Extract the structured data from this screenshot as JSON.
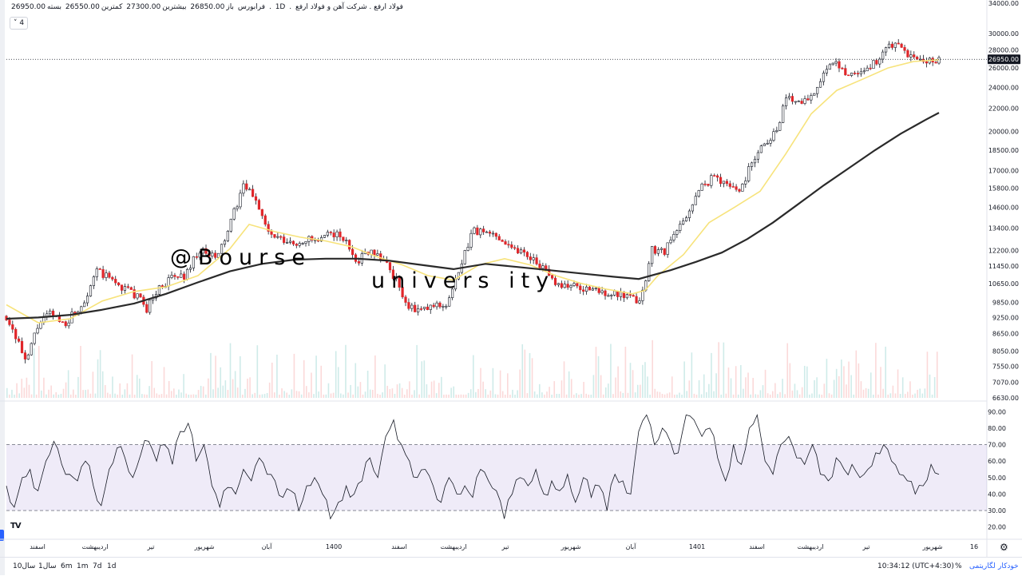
{
  "header": {
    "title": "فولاد ارفع . شرکت آهن و فولاد ارفع",
    "interval": "1D",
    "exchange": "فرابورس",
    "open_label": "باز",
    "open": "26850.00",
    "high_label": "بیشترین",
    "high": "27300.00",
    "low_label": "کمترین",
    "low": "26550.00",
    "close_label": "بسته",
    "close": "26950.00",
    "collapse_label": "4"
  },
  "watermark": {
    "line1": "@Bourse",
    "line2": "univers ity"
  },
  "bottom_bar": {
    "ranges": [
      "10سال",
      "1سال",
      "6m",
      "1m",
      "7d",
      "1d"
    ],
    "time": "10:34:12 (UTC+4:30)",
    "percent": "%",
    "log": "لگاریتمی",
    "auto": "خودکار"
  },
  "chart_data": [
    {
      "type": "candlestick",
      "title": "فولاد ارفع . شرکت آهن و فولاد ارفع",
      "price_scale": "log",
      "y_ticks": [
        34000,
        30000,
        28000,
        26000,
        24000,
        22000,
        20000,
        18500,
        17000,
        15800,
        14600,
        13400,
        12200,
        11450,
        10650,
        9850,
        9250,
        8650,
        8050,
        7550,
        7070,
        6630
      ],
      "y_tick_labels": [
        "34000.00",
        "30000.00",
        "28000.00",
        "26000.00",
        "24000.00",
        "22000.00",
        "20000.00",
        "18500.00",
        "17000.00",
        "15800.00",
        "14600.00",
        "13400.00",
        "12200.00",
        "11450.00",
        "10650.00",
        "9850.00",
        "9250.00",
        "8650.00",
        "8050.00",
        "7550.00",
        "7070.00",
        "6630.00"
      ],
      "last_price": 26950,
      "last_price_label": "26950.00",
      "x_labels": [
        "اسفند",
        "اردیبهشت",
        "تیر",
        "شهریور",
        "آبان",
        "1400",
        "اسفند",
        "اردیبهشت",
        "تیر",
        "شهریور",
        "آبان",
        "1401",
        "اسفند",
        "اردیبهشت",
        "تیر",
        "شهریور",
        "16"
      ],
      "close_path": [
        [
          0,
          9300
        ],
        [
          2,
          8300
        ],
        [
          3,
          7600
        ],
        [
          5,
          9000
        ],
        [
          7,
          9400
        ],
        [
          9,
          9000
        ],
        [
          12,
          9800
        ],
        [
          14,
          11200
        ],
        [
          16,
          10900
        ],
        [
          18,
          10500
        ],
        [
          20,
          10200
        ],
        [
          22,
          9600
        ],
        [
          24,
          10500
        ],
        [
          26,
          10900
        ],
        [
          28,
          11000
        ],
        [
          30,
          12200
        ],
        [
          33,
          11800
        ],
        [
          35,
          13500
        ],
        [
          37,
          15900
        ],
        [
          39,
          15200
        ],
        [
          41,
          13100
        ],
        [
          43,
          12700
        ],
        [
          45,
          12500
        ],
        [
          47,
          12800
        ],
        [
          49,
          12600
        ],
        [
          51,
          13200
        ],
        [
          53,
          12700
        ],
        [
          55,
          11700
        ],
        [
          57,
          12300
        ],
        [
          59,
          11800
        ],
        [
          61,
          10800
        ],
        [
          63,
          9600
        ],
        [
          65,
          9500
        ],
        [
          67,
          9700
        ],
        [
          69,
          9800
        ],
        [
          71,
          11200
        ],
        [
          73,
          13300
        ],
        [
          75,
          13100
        ],
        [
          77,
          13000
        ],
        [
          79,
          12400
        ],
        [
          81,
          12100
        ],
        [
          83,
          11700
        ],
        [
          85,
          10900
        ],
        [
          87,
          10600
        ],
        [
          89,
          10500
        ],
        [
          91,
          10400
        ],
        [
          93,
          10300
        ],
        [
          95,
          10200
        ],
        [
          97,
          10050
        ],
        [
          99,
          9900
        ],
        [
          100,
          10600
        ],
        [
          101,
          12300
        ],
        [
          103,
          12200
        ],
        [
          105,
          13200
        ],
        [
          107,
          14500
        ],
        [
          109,
          16000
        ],
        [
          111,
          16600
        ],
        [
          113,
          16000
        ],
        [
          115,
          15700
        ],
        [
          117,
          18000
        ],
        [
          119,
          19200
        ],
        [
          121,
          20400
        ],
        [
          122,
          23100
        ],
        [
          124,
          22700
        ],
        [
          126,
          23100
        ],
        [
          128,
          25500
        ],
        [
          130,
          26400
        ],
        [
          132,
          25300
        ],
        [
          134,
          25700
        ],
        [
          136,
          26500
        ],
        [
          138,
          28500
        ],
        [
          140,
          28200
        ],
        [
          142,
          27000
        ],
        [
          144,
          26500
        ],
        [
          146,
          26950
        ]
      ],
      "sma_short": [
        [
          0,
          9750
        ],
        [
          5,
          9050
        ],
        [
          10,
          9200
        ],
        [
          15,
          9900
        ],
        [
          20,
          10300
        ],
        [
          25,
          10500
        ],
        [
          30,
          11000
        ],
        [
          35,
          12300
        ],
        [
          38,
          13600
        ],
        [
          42,
          13200
        ],
        [
          46,
          12900
        ],
        [
          50,
          12700
        ],
        [
          54,
          12400
        ],
        [
          58,
          11900
        ],
        [
          62,
          11500
        ],
        [
          66,
          11000
        ],
        [
          70,
          10800
        ],
        [
          74,
          11500
        ],
        [
          78,
          11800
        ],
        [
          82,
          11500
        ],
        [
          86,
          11000
        ],
        [
          90,
          10650
        ],
        [
          94,
          10400
        ],
        [
          98,
          10200
        ],
        [
          100,
          10350
        ],
        [
          102,
          11000
        ],
        [
          106,
          12000
        ],
        [
          110,
          13700
        ],
        [
          114,
          14600
        ],
        [
          118,
          15600
        ],
        [
          122,
          18200
        ],
        [
          126,
          21500
        ],
        [
          130,
          23700
        ],
        [
          134,
          24800
        ],
        [
          138,
          26000
        ],
        [
          142,
          26700
        ],
        [
          146,
          26900
        ]
      ],
      "sma_long": [
        [
          0,
          9200
        ],
        [
          5,
          9250
        ],
        [
          10,
          9350
        ],
        [
          15,
          9550
        ],
        [
          20,
          9800
        ],
        [
          25,
          10200
        ],
        [
          30,
          10700
        ],
        [
          35,
          11200
        ],
        [
          40,
          11550
        ],
        [
          45,
          11750
        ],
        [
          50,
          11800
        ],
        [
          55,
          11800
        ],
        [
          60,
          11700
        ],
        [
          65,
          11500
        ],
        [
          70,
          11300
        ],
        [
          75,
          11550
        ],
        [
          80,
          11400
        ],
        [
          85,
          11250
        ],
        [
          90,
          11100
        ],
        [
          95,
          10950
        ],
        [
          99,
          10850
        ],
        [
          104,
          11250
        ],
        [
          108,
          11650
        ],
        [
          112,
          12100
        ],
        [
          116,
          12800
        ],
        [
          120,
          13700
        ],
        [
          124,
          14800
        ],
        [
          128,
          16000
        ],
        [
          132,
          17200
        ],
        [
          136,
          18500
        ],
        [
          140,
          19800
        ],
        [
          144,
          21000
        ],
        [
          146,
          21600
        ]
      ],
      "x_domain": [
        0,
        146
      ],
      "y_domain": [
        6630,
        34000
      ]
    },
    {
      "type": "line",
      "name": "RSI",
      "y_ticks": [
        90,
        80,
        70,
        60,
        50,
        40,
        30,
        20
      ],
      "y_tick_labels": [
        "90.00",
        "80.00",
        "70.00",
        "60.00",
        "50.00",
        "40.00",
        "30.00",
        "20.00"
      ],
      "band": [
        30,
        70
      ],
      "y_domain": [
        15,
        95
      ],
      "values": [
        45,
        32,
        50,
        55,
        42,
        60,
        72,
        58,
        52,
        48,
        60,
        45,
        33,
        55,
        68,
        62,
        50,
        64,
        72,
        60,
        70,
        58,
        78,
        83,
        60,
        70,
        45,
        32,
        44,
        40,
        55,
        48,
        62,
        52,
        48,
        38,
        42,
        30,
        45,
        50,
        40,
        25,
        35,
        45,
        40,
        48,
        62,
        50,
        75,
        85,
        70,
        60,
        50,
        55,
        45,
        35,
        50,
        40,
        45,
        38,
        55,
        48,
        42,
        25,
        40,
        50,
        45,
        55,
        40,
        48,
        42,
        52,
        35,
        50,
        38,
        45,
        30,
        52,
        48,
        40,
        78,
        88,
        70,
        80,
        72,
        65,
        88,
        85,
        75,
        80,
        62,
        48,
        70,
        58,
        80,
        88,
        60,
        52,
        70,
        75,
        62,
        58,
        70,
        52,
        48,
        62,
        55,
        58,
        50,
        55,
        65,
        70,
        60,
        52,
        48,
        40,
        45,
        58,
        52
      ]
    }
  ]
}
